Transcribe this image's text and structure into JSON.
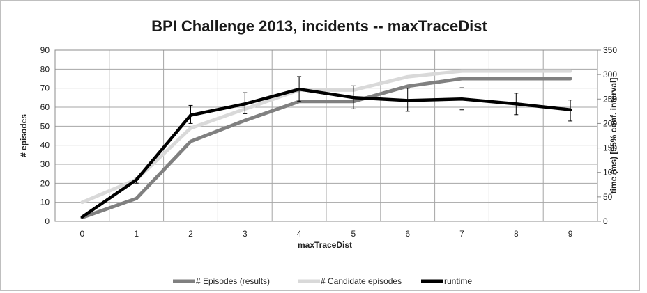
{
  "chart_data": {
    "type": "line",
    "title": "BPI Challenge 2013, incidents -- maxTraceDist",
    "xlabel": "maxTraceDist",
    "ylabel": "# episodes",
    "y2label": "time (ms) [95% conf. interval]",
    "x": [
      0,
      1,
      2,
      3,
      4,
      5,
      6,
      7,
      8,
      9
    ],
    "xlim": [
      0,
      9
    ],
    "ylim": [
      0,
      90
    ],
    "y_ticks": [
      0,
      10,
      20,
      30,
      40,
      50,
      60,
      70,
      80,
      90
    ],
    "y2lim": [
      0,
      350
    ],
    "y2_ticks": [
      0,
      50,
      100,
      150,
      200,
      250,
      300,
      350
    ],
    "grid": true,
    "legend_position": "bottom",
    "series": [
      {
        "name": "# Episodes (results)",
        "axis": "left",
        "color": "#808080",
        "values": [
          2,
          12,
          42,
          53,
          63,
          63,
          71,
          75,
          75,
          75
        ]
      },
      {
        "name": "# Candidate episodes",
        "axis": "left",
        "color": "#d9d9d9",
        "values": [
          10,
          22,
          49,
          59,
          69,
          69,
          76,
          79,
          79,
          79
        ]
      },
      {
        "name": "runtime",
        "axis": "right",
        "color": "#000000",
        "values": [
          9,
          85,
          217,
          240,
          270,
          253,
          247,
          250,
          240,
          228
        ],
        "error_low": [
          9,
          78,
          200,
          220,
          245,
          230,
          225,
          228,
          218,
          205
        ],
        "error_high": [
          9,
          90,
          237,
          263,
          296,
          277,
          272,
          273,
          262,
          248
        ]
      }
    ]
  }
}
